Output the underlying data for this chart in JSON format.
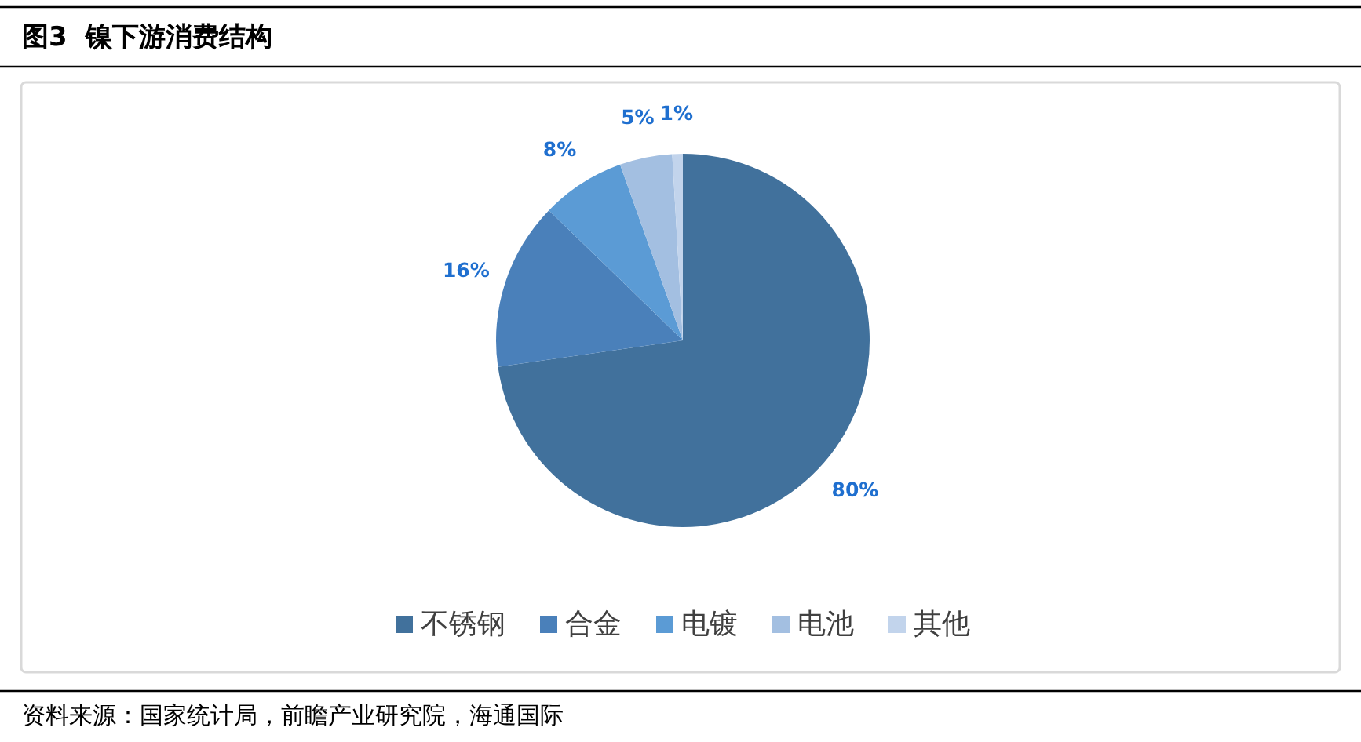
{
  "chart_data": {
    "type": "pie",
    "title": "图3  镍下游消费结构",
    "categories": [
      "不锈钢",
      "合金",
      "电镀",
      "电池",
      "其他"
    ],
    "values": [
      80,
      16,
      8,
      5,
      1
    ],
    "colors": [
      "#41719c",
      "#4a80ba",
      "#5b9bd5",
      "#a3bfe1",
      "#c2d4ec"
    ],
    "value_labels": [
      "80%",
      "16%",
      "8%",
      "5%",
      "1%"
    ],
    "legend": "bottom",
    "annotations": [
      "资料来源：国家统计局，前瞻产业研究院，海通国际"
    ]
  }
}
